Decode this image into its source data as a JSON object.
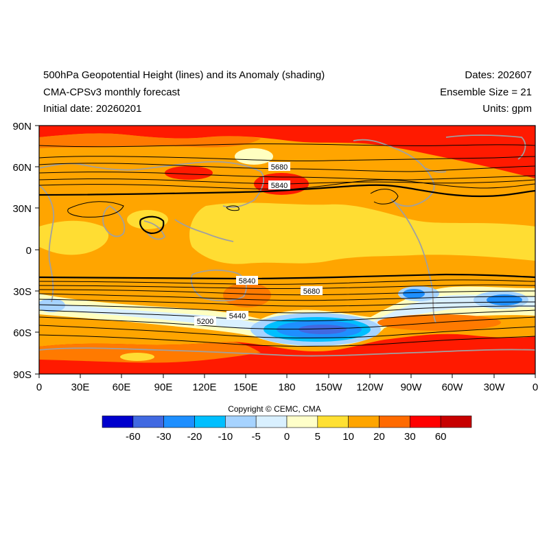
{
  "header": {
    "title_line1": "500hPa Geopotential Height (lines) and its Anomaly (shading)",
    "title_line2": "CMA-CPSv3 monthly forecast",
    "title_line3": "Initial date: 20260201",
    "dates": "Dates: 202607",
    "ensemble": "Ensemble Size = 21",
    "units": "Units: gpm"
  },
  "map": {
    "lat_ticks": [
      "90N",
      "60N",
      "30N",
      "0",
      "30S",
      "60S",
      "90S"
    ],
    "lon_ticks": [
      "0",
      "30E",
      "60E",
      "90E",
      "120E",
      "150E",
      "180",
      "150W",
      "120W",
      "90W",
      "60W",
      "30W",
      "0"
    ],
    "contour_labels": [
      "5680",
      "5840",
      "5840",
      "5680",
      "5440",
      "5200"
    ],
    "colors": {
      "land_outline": "#a0a0a0",
      "contour": "#000000",
      "deep_red": "#ff1a00",
      "orange": "#ff8000",
      "light_orange": "#ffa500",
      "yellow": "#ffdd33",
      "pale_yellow": "#ffffc0",
      "blue": "#1e90ff"
    }
  },
  "colorbar": {
    "labels": [
      "-60",
      "-30",
      "-20",
      "-10",
      "-5",
      "0",
      "5",
      "10",
      "20",
      "30",
      "60"
    ],
    "colors": [
      "#0000cd",
      "#4169e1",
      "#1e8fff",
      "#00bfff",
      "#a6d3ff",
      "#d9f0ff",
      "#ffffc9",
      "#ffe033",
      "#ffa500",
      "#ff6a00",
      "#ff0000",
      "#c70000"
    ]
  },
  "footer": {
    "copyright": "Copyright © CEMC, CMA"
  }
}
